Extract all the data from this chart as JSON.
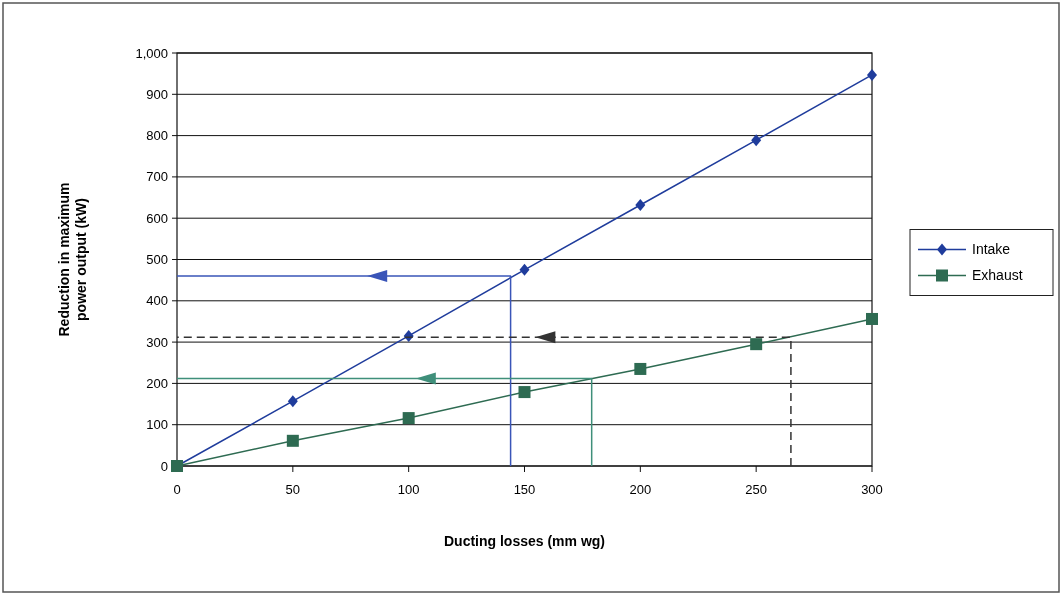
{
  "chart_data": {
    "type": "line",
    "xlabel": "Ducting losses (mm wg)",
    "ylabel": "Reduction in maximum power output (kW)",
    "x": [
      0,
      50,
      100,
      150,
      200,
      250,
      300
    ],
    "series": [
      {
        "name": "Intake",
        "color": "#1f3c9c",
        "marker": "diamond",
        "values": [
          0,
          157,
          315,
          475,
          632,
          789,
          947
        ]
      },
      {
        "name": "Exhaust",
        "color": "#2e6b52",
        "marker": "square",
        "values": [
          0,
          61,
          116,
          179,
          235,
          295,
          356
        ]
      },
      {
        "color": "#3a55b8",
        "marker": "none",
        "x": [
          144,
          144,
          0
        ],
        "values": [
          0,
          460,
          460
        ]
      },
      {
        "color": "#3f8f7a",
        "marker": "none",
        "x": [
          179,
          179,
          0
        ],
        "values": [
          0,
          212,
          212
        ]
      },
      {
        "color": "#333333",
        "marker": "none",
        "line_style": "dashed",
        "x": [
          265,
          265,
          0
        ],
        "values": [
          0,
          312,
          312
        ]
      }
    ],
    "xlim": [
      0,
      300
    ],
    "xticks": [
      0,
      50,
      100,
      150,
      200,
      250,
      300
    ],
    "ylim": [
      0,
      1000
    ],
    "yticks": [
      0,
      100,
      200,
      300,
      400,
      500,
      600,
      700,
      800,
      900,
      {
        "value": 1000,
        "label": "1,000"
      }
    ],
    "grid": "y",
    "legend": "right"
  }
}
